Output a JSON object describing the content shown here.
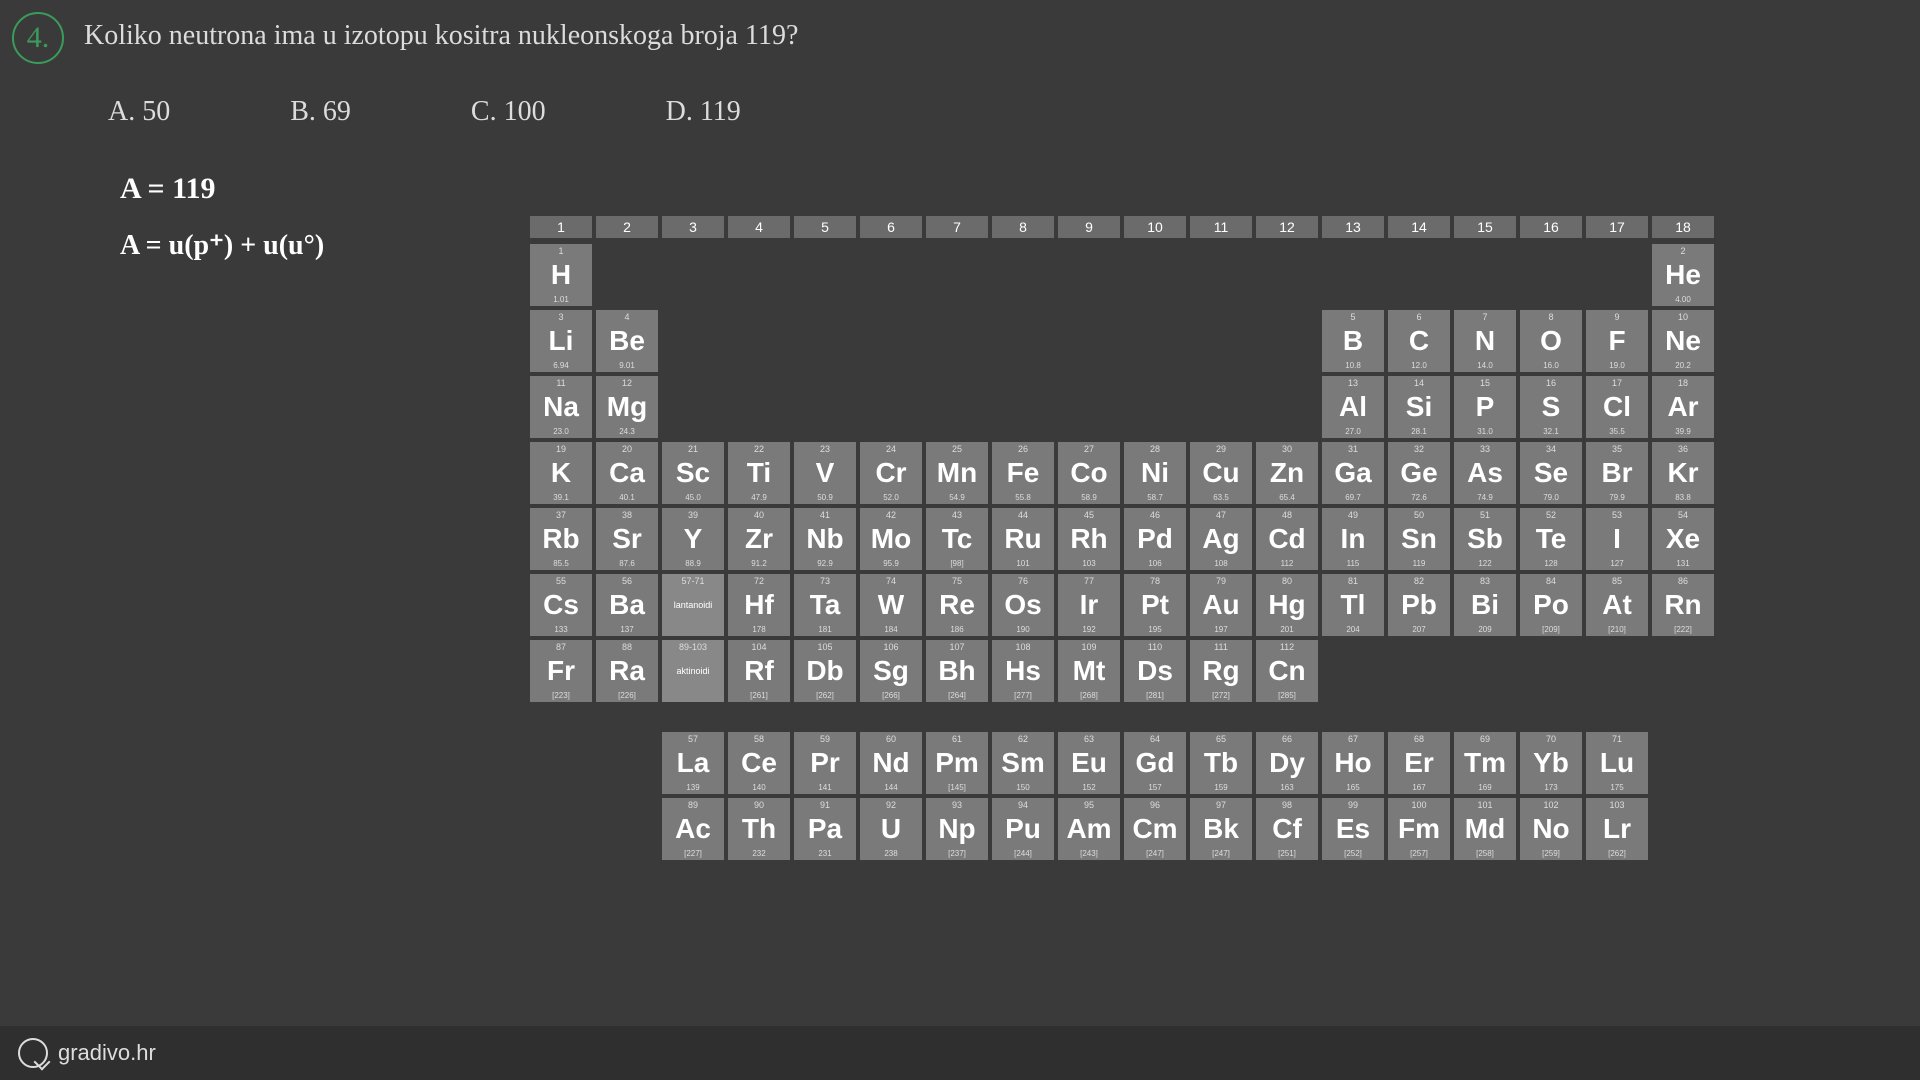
{
  "question": {
    "number": "4.",
    "text": "Koliko neutrona ima u izotopu kositra nukleonskoga broja 119?"
  },
  "answers": [
    {
      "k": "A.",
      "v": "50"
    },
    {
      "k": "B.",
      "v": "69"
    },
    {
      "k": "C.",
      "v": "100"
    },
    {
      "k": "D.",
      "v": "119"
    }
  ],
  "handwriting": {
    "line1": "A = 119",
    "line2": "A = u(p⁺) + u(u°)"
  },
  "footer": {
    "brand": "gradivo.hr"
  },
  "groups": [
    "1",
    "2",
    "3",
    "4",
    "5",
    "6",
    "7",
    "8",
    "9",
    "10",
    "11",
    "12",
    "13",
    "14",
    "15",
    "16",
    "17",
    "18"
  ],
  "colors": {
    "bg": "#3a3a3a",
    "cell": "#7a7a7a",
    "cellLight": "#888",
    "header": "#6b6b6b",
    "accent": "#3b9b5b"
  },
  "elements": {
    "r1": [
      {
        "n": "1",
        "s": "H",
        "m": "1.01"
      },
      null,
      null,
      null,
      null,
      null,
      null,
      null,
      null,
      null,
      null,
      null,
      null,
      null,
      null,
      null,
      null,
      {
        "n": "2",
        "s": "He",
        "m": "4.00"
      }
    ],
    "r2": [
      {
        "n": "3",
        "s": "Li",
        "m": "6.94"
      },
      {
        "n": "4",
        "s": "Be",
        "m": "9.01"
      },
      null,
      null,
      null,
      null,
      null,
      null,
      null,
      null,
      null,
      null,
      {
        "n": "5",
        "s": "B",
        "m": "10.8"
      },
      {
        "n": "6",
        "s": "C",
        "m": "12.0"
      },
      {
        "n": "7",
        "s": "N",
        "m": "14.0"
      },
      {
        "n": "8",
        "s": "O",
        "m": "16.0"
      },
      {
        "n": "9",
        "s": "F",
        "m": "19.0"
      },
      {
        "n": "10",
        "s": "Ne",
        "m": "20.2"
      }
    ],
    "r3": [
      {
        "n": "11",
        "s": "Na",
        "m": "23.0"
      },
      {
        "n": "12",
        "s": "Mg",
        "m": "24.3"
      },
      null,
      null,
      null,
      null,
      null,
      null,
      null,
      null,
      null,
      null,
      {
        "n": "13",
        "s": "Al",
        "m": "27.0"
      },
      {
        "n": "14",
        "s": "Si",
        "m": "28.1"
      },
      {
        "n": "15",
        "s": "P",
        "m": "31.0"
      },
      {
        "n": "16",
        "s": "S",
        "m": "32.1"
      },
      {
        "n": "17",
        "s": "Cl",
        "m": "35.5"
      },
      {
        "n": "18",
        "s": "Ar",
        "m": "39.9"
      }
    ],
    "r4": [
      {
        "n": "19",
        "s": "K",
        "m": "39.1"
      },
      {
        "n": "20",
        "s": "Ca",
        "m": "40.1"
      },
      {
        "n": "21",
        "s": "Sc",
        "m": "45.0"
      },
      {
        "n": "22",
        "s": "Ti",
        "m": "47.9"
      },
      {
        "n": "23",
        "s": "V",
        "m": "50.9"
      },
      {
        "n": "24",
        "s": "Cr",
        "m": "52.0"
      },
      {
        "n": "25",
        "s": "Mn",
        "m": "54.9"
      },
      {
        "n": "26",
        "s": "Fe",
        "m": "55.8"
      },
      {
        "n": "27",
        "s": "Co",
        "m": "58.9"
      },
      {
        "n": "28",
        "s": "Ni",
        "m": "58.7"
      },
      {
        "n": "29",
        "s": "Cu",
        "m": "63.5"
      },
      {
        "n": "30",
        "s": "Zn",
        "m": "65.4"
      },
      {
        "n": "31",
        "s": "Ga",
        "m": "69.7"
      },
      {
        "n": "32",
        "s": "Ge",
        "m": "72.6"
      },
      {
        "n": "33",
        "s": "As",
        "m": "74.9"
      },
      {
        "n": "34",
        "s": "Se",
        "m": "79.0"
      },
      {
        "n": "35",
        "s": "Br",
        "m": "79.9"
      },
      {
        "n": "36",
        "s": "Kr",
        "m": "83.8"
      }
    ],
    "r5": [
      {
        "n": "37",
        "s": "Rb",
        "m": "85.5"
      },
      {
        "n": "38",
        "s": "Sr",
        "m": "87.6"
      },
      {
        "n": "39",
        "s": "Y",
        "m": "88.9"
      },
      {
        "n": "40",
        "s": "Zr",
        "m": "91.2"
      },
      {
        "n": "41",
        "s": "Nb",
        "m": "92.9"
      },
      {
        "n": "42",
        "s": "Mo",
        "m": "95.9"
      },
      {
        "n": "43",
        "s": "Tc",
        "m": "[98]"
      },
      {
        "n": "44",
        "s": "Ru",
        "m": "101"
      },
      {
        "n": "45",
        "s": "Rh",
        "m": "103"
      },
      {
        "n": "46",
        "s": "Pd",
        "m": "106"
      },
      {
        "n": "47",
        "s": "Ag",
        "m": "108"
      },
      {
        "n": "48",
        "s": "Cd",
        "m": "112"
      },
      {
        "n": "49",
        "s": "In",
        "m": "115"
      },
      {
        "n": "50",
        "s": "Sn",
        "m": "119"
      },
      {
        "n": "51",
        "s": "Sb",
        "m": "122"
      },
      {
        "n": "52",
        "s": "Te",
        "m": "128"
      },
      {
        "n": "53",
        "s": "I",
        "m": "127"
      },
      {
        "n": "54",
        "s": "Xe",
        "m": "131"
      }
    ],
    "r6": [
      {
        "n": "55",
        "s": "Cs",
        "m": "133"
      },
      {
        "n": "56",
        "s": "Ba",
        "m": "137"
      },
      {
        "n": "57-71",
        "s": "lantanoidi",
        "m": "",
        "ph": true
      },
      {
        "n": "72",
        "s": "Hf",
        "m": "178"
      },
      {
        "n": "73",
        "s": "Ta",
        "m": "181"
      },
      {
        "n": "74",
        "s": "W",
        "m": "184"
      },
      {
        "n": "75",
        "s": "Re",
        "m": "186"
      },
      {
        "n": "76",
        "s": "Os",
        "m": "190"
      },
      {
        "n": "77",
        "s": "Ir",
        "m": "192"
      },
      {
        "n": "78",
        "s": "Pt",
        "m": "195"
      },
      {
        "n": "79",
        "s": "Au",
        "m": "197"
      },
      {
        "n": "80",
        "s": "Hg",
        "m": "201"
      },
      {
        "n": "81",
        "s": "Tl",
        "m": "204"
      },
      {
        "n": "82",
        "s": "Pb",
        "m": "207"
      },
      {
        "n": "83",
        "s": "Bi",
        "m": "209"
      },
      {
        "n": "84",
        "s": "Po",
        "m": "[209]"
      },
      {
        "n": "85",
        "s": "At",
        "m": "[210]"
      },
      {
        "n": "86",
        "s": "Rn",
        "m": "[222]"
      }
    ],
    "r7": [
      {
        "n": "87",
        "s": "Fr",
        "m": "[223]"
      },
      {
        "n": "88",
        "s": "Ra",
        "m": "[226]"
      },
      {
        "n": "89-103",
        "s": "aktinoidi",
        "m": "",
        "ph": true
      },
      {
        "n": "104",
        "s": "Rf",
        "m": "[261]"
      },
      {
        "n": "105",
        "s": "Db",
        "m": "[262]"
      },
      {
        "n": "106",
        "s": "Sg",
        "m": "[266]"
      },
      {
        "n": "107",
        "s": "Bh",
        "m": "[264]"
      },
      {
        "n": "108",
        "s": "Hs",
        "m": "[277]"
      },
      {
        "n": "109",
        "s": "Mt",
        "m": "[268]"
      },
      {
        "n": "110",
        "s": "Ds",
        "m": "[281]"
      },
      {
        "n": "111",
        "s": "Rg",
        "m": "[272]"
      },
      {
        "n": "112",
        "s": "Cn",
        "m": "[285]"
      },
      null,
      null,
      null,
      null,
      null,
      null
    ],
    "f1": [
      {
        "n": "57",
        "s": "La",
        "m": "139"
      },
      {
        "n": "58",
        "s": "Ce",
        "m": "140"
      },
      {
        "n": "59",
        "s": "Pr",
        "m": "141"
      },
      {
        "n": "60",
        "s": "Nd",
        "m": "144"
      },
      {
        "n": "61",
        "s": "Pm",
        "m": "[145]"
      },
      {
        "n": "62",
        "s": "Sm",
        "m": "150"
      },
      {
        "n": "63",
        "s": "Eu",
        "m": "152"
      },
      {
        "n": "64",
        "s": "Gd",
        "m": "157"
      },
      {
        "n": "65",
        "s": "Tb",
        "m": "159"
      },
      {
        "n": "66",
        "s": "Dy",
        "m": "163"
      },
      {
        "n": "67",
        "s": "Ho",
        "m": "165"
      },
      {
        "n": "68",
        "s": "Er",
        "m": "167"
      },
      {
        "n": "69",
        "s": "Tm",
        "m": "169"
      },
      {
        "n": "70",
        "s": "Yb",
        "m": "173"
      },
      {
        "n": "71",
        "s": "Lu",
        "m": "175"
      }
    ],
    "f2": [
      {
        "n": "89",
        "s": "Ac",
        "m": "[227]"
      },
      {
        "n": "90",
        "s": "Th",
        "m": "232"
      },
      {
        "n": "91",
        "s": "Pa",
        "m": "231"
      },
      {
        "n": "92",
        "s": "U",
        "m": "238"
      },
      {
        "n": "93",
        "s": "Np",
        "m": "[237]"
      },
      {
        "n": "94",
        "s": "Pu",
        "m": "[244]"
      },
      {
        "n": "95",
        "s": "Am",
        "m": "[243]"
      },
      {
        "n": "96",
        "s": "Cm",
        "m": "[247]"
      },
      {
        "n": "97",
        "s": "Bk",
        "m": "[247]"
      },
      {
        "n": "98",
        "s": "Cf",
        "m": "[251]"
      },
      {
        "n": "99",
        "s": "Es",
        "m": "[252]"
      },
      {
        "n": "100",
        "s": "Fm",
        "m": "[257]"
      },
      {
        "n": "101",
        "s": "Md",
        "m": "[258]"
      },
      {
        "n": "102",
        "s": "No",
        "m": "[259]"
      },
      {
        "n": "103",
        "s": "Lr",
        "m": "[262]"
      }
    ]
  }
}
